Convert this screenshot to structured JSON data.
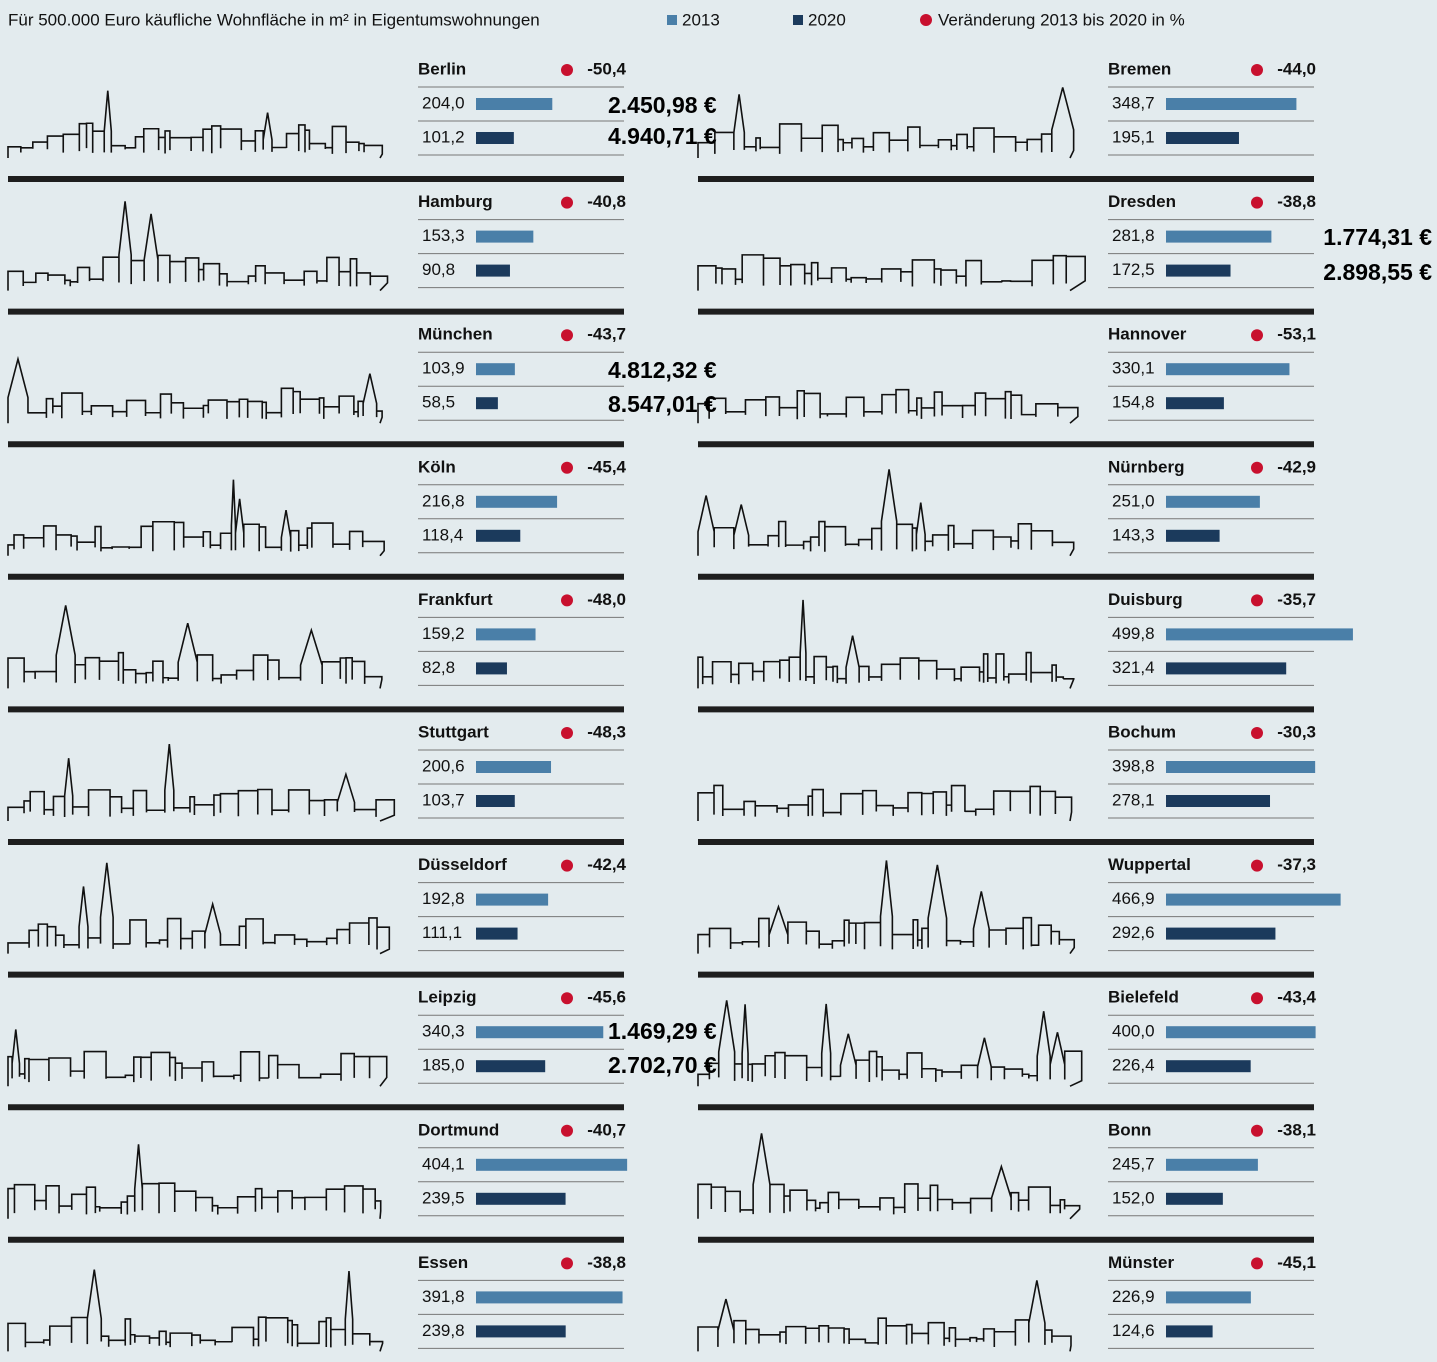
{
  "chart_data": {
    "type": "bar",
    "title": "Für 500.000 Euro käufliche Wohnfläche in m² in Eigentumswohnungen",
    "categories": [
      "Berlin",
      "Hamburg",
      "München",
      "Köln",
      "Frankfurt",
      "Stuttgart",
      "Düsseldorf",
      "Leipzig",
      "Dortmund",
      "Essen",
      "Bremen",
      "Dresden",
      "Hannover",
      "Nürnberg",
      "Duisburg",
      "Bochum",
      "Wuppertal",
      "Bielefeld",
      "Bonn",
      "Münster"
    ],
    "series": [
      {
        "name": "2013",
        "color": "#4a7fa8",
        "values": [
          204.0,
          153.3,
          103.9,
          216.8,
          159.2,
          200.6,
          192.8,
          340.3,
          404.1,
          391.8,
          348.7,
          281.8,
          330.1,
          251.0,
          499.8,
          398.8,
          466.9,
          400.0,
          245.7,
          226.9
        ],
        "value_labels": [
          "204,0",
          "153,3",
          "103,9",
          "216,8",
          "159,2",
          "200,6",
          "192,8",
          "340,3",
          "404,1",
          "391,8",
          "348,7",
          "281,8",
          "330,1",
          "251,0",
          "499,8",
          "398,8",
          "466,9",
          "400,0",
          "245,7",
          "226,9"
        ]
      },
      {
        "name": "2020",
        "color": "#1b3a5c",
        "values": [
          101.2,
          90.8,
          58.5,
          118.4,
          82.8,
          103.7,
          111.1,
          185.0,
          239.5,
          239.8,
          195.1,
          172.5,
          154.8,
          143.3,
          321.4,
          278.1,
          292.6,
          226.4,
          152.0,
          124.6
        ],
        "value_labels": [
          "101,2",
          "90,8",
          "58,5",
          "118,4",
          "82,8",
          "103,7",
          "111,1",
          "185,0",
          "239,5",
          "239,8",
          "195,1",
          "172,5",
          "154,8",
          "143,3",
          "321,4",
          "278,1",
          "292,6",
          "226,4",
          "152,0",
          "124,6"
        ]
      }
    ],
    "changes": {
      "name": "Veränderung 2013 bis 2020 in %",
      "color": "#c8102e",
      "values": [
        -50.4,
        -40.8,
        -43.7,
        -45.4,
        -48.0,
        -48.3,
        -42.4,
        -45.6,
        -40.7,
        -38.8,
        -44.0,
        -38.8,
        -53.1,
        -42.9,
        -35.7,
        -30.3,
        -37.3,
        -43.4,
        -38.1,
        -45.1
      ],
      "value_labels": [
        "-50,4",
        "-40,8",
        "-43,7",
        "-45,4",
        "-48,0",
        "-48,3",
        "-42,4",
        "-45,6",
        "-40,7",
        "-38,8",
        "-44,0",
        "-38,8",
        "-53,1",
        "-42,9",
        "-35,7",
        "-30,3",
        "-37,3",
        "-43,4",
        "-38,1",
        "-45,1"
      ]
    },
    "annotations": [
      "2.450,98 €",
      "4.940,71 €",
      "1.774,31 €",
      "2.898,55 €",
      "4.812,32 €",
      "8.547,01 €",
      "1.469,29 €",
      "2.702,70 €"
    ]
  }
}
